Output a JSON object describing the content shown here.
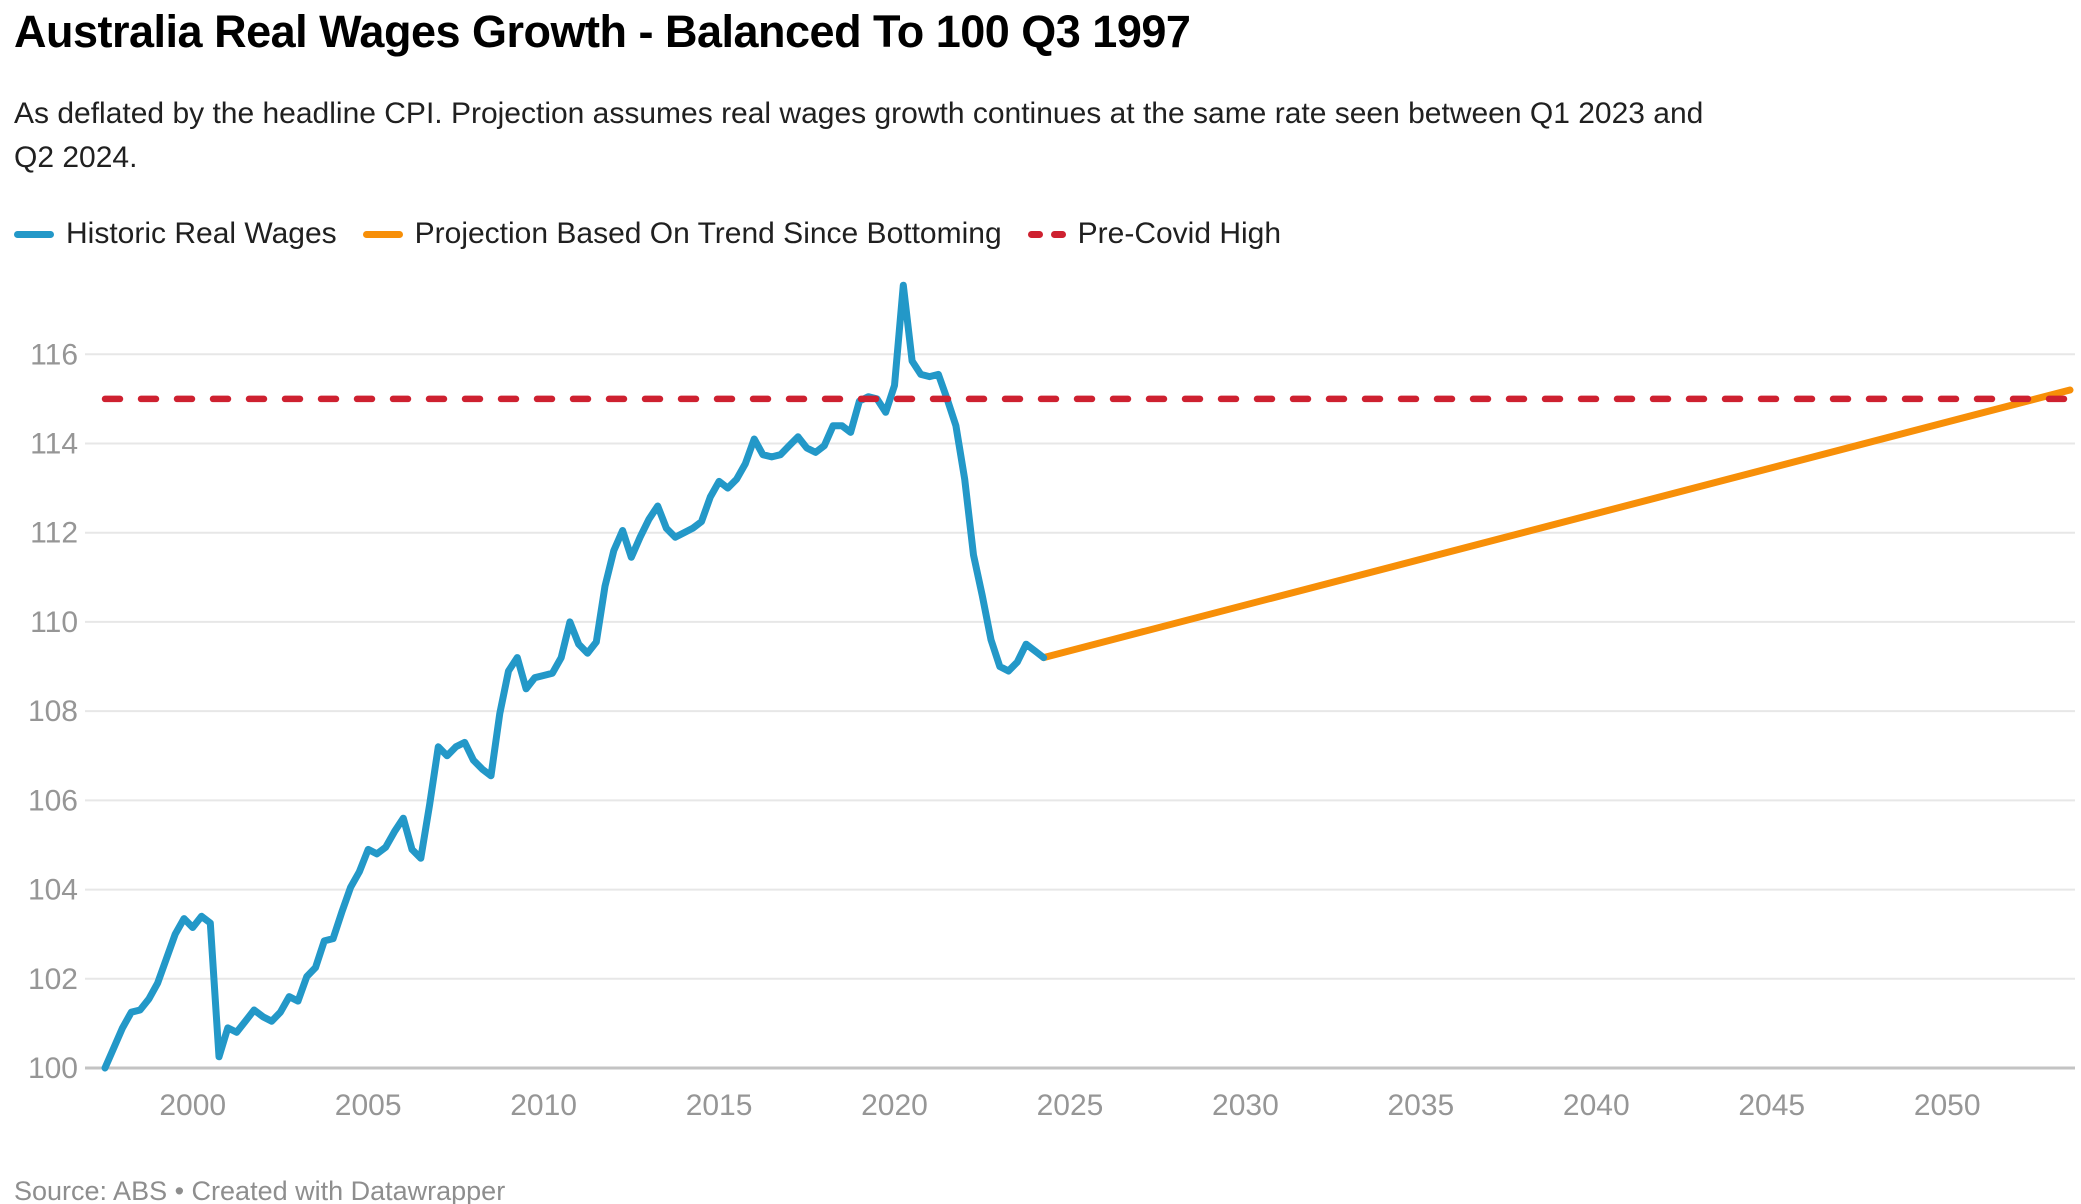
{
  "header": {
    "title": "Australia Real Wages Growth - Balanced To 100 Q3 1997",
    "subtitle": "As deflated by the headline CPI. Projection assumes real wages growth continues at the same rate seen between Q1 2023 and\nQ2 2024."
  },
  "legend": [
    {
      "label": "Historic Real Wages",
      "color": "#2398c8",
      "style": "solid"
    },
    {
      "label": "Projection Based On Trend Since Bottoming",
      "color": "#f78f08",
      "style": "solid"
    },
    {
      "label": "Pre-Covid High",
      "color": "#ce2130",
      "style": "dashed"
    }
  ],
  "footer": {
    "source": "Source: ABS • Created with Datawrapper"
  },
  "colors": {
    "historic": "#2398c8",
    "projection": "#f78f08",
    "pre_covid_high": "#ce2130",
    "gridline": "#e7e7e7",
    "axis_line": "#c3c3c3",
    "tick_label": "#969696"
  },
  "chart_data": {
    "type": "line",
    "title": "Australia Real Wages Growth - Balanced To 100 Q3 1997",
    "xlabel": "",
    "ylabel": "",
    "x_axis": {
      "range": [
        1997.5,
        2053.5
      ],
      "ticks": [
        2000,
        2005,
        2010,
        2015,
        2020,
        2025,
        2030,
        2035,
        2040,
        2045,
        2050
      ]
    },
    "y_axis": {
      "range": [
        100,
        117.8
      ],
      "ticks": [
        100,
        102,
        104,
        106,
        108,
        110,
        112,
        114,
        116
      ],
      "gridlines": true
    },
    "legend_position": "top",
    "series": [
      {
        "name": "Historic Real Wages",
        "color": "#2398c8",
        "style": "solid",
        "points": [
          [
            1997.5,
            100.0
          ],
          [
            1997.75,
            100.45
          ],
          [
            1998.0,
            100.9
          ],
          [
            1998.25,
            101.25
          ],
          [
            1998.5,
            101.3
          ],
          [
            1998.75,
            101.55
          ],
          [
            1999.0,
            101.9
          ],
          [
            1999.25,
            102.45
          ],
          [
            1999.5,
            103.0
          ],
          [
            1999.75,
            103.35
          ],
          [
            2000.0,
            103.15
          ],
          [
            2000.25,
            103.4
          ],
          [
            2000.5,
            103.25
          ],
          [
            2000.75,
            100.25
          ],
          [
            2001.0,
            100.9
          ],
          [
            2001.25,
            100.8
          ],
          [
            2001.5,
            101.05
          ],
          [
            2001.75,
            101.3
          ],
          [
            2002.0,
            101.15
          ],
          [
            2002.25,
            101.05
          ],
          [
            2002.5,
            101.25
          ],
          [
            2002.75,
            101.6
          ],
          [
            2003.0,
            101.5
          ],
          [
            2003.25,
            102.05
          ],
          [
            2003.5,
            102.25
          ],
          [
            2003.75,
            102.85
          ],
          [
            2004.0,
            102.9
          ],
          [
            2004.25,
            103.5
          ],
          [
            2004.5,
            104.05
          ],
          [
            2004.75,
            104.4
          ],
          [
            2005.0,
            104.9
          ],
          [
            2005.25,
            104.8
          ],
          [
            2005.5,
            104.95
          ],
          [
            2005.75,
            105.3
          ],
          [
            2006.0,
            105.6
          ],
          [
            2006.25,
            104.9
          ],
          [
            2006.5,
            104.7
          ],
          [
            2006.75,
            105.9
          ],
          [
            2007.0,
            107.2
          ],
          [
            2007.25,
            107.0
          ],
          [
            2007.5,
            107.2
          ],
          [
            2007.75,
            107.3
          ],
          [
            2008.0,
            106.9
          ],
          [
            2008.25,
            106.7
          ],
          [
            2008.5,
            106.55
          ],
          [
            2008.75,
            107.95
          ],
          [
            2009.0,
            108.9
          ],
          [
            2009.25,
            109.2
          ],
          [
            2009.5,
            108.5
          ],
          [
            2009.75,
            108.75
          ],
          [
            2010.0,
            108.8
          ],
          [
            2010.25,
            108.85
          ],
          [
            2010.5,
            109.2
          ],
          [
            2010.75,
            110.0
          ],
          [
            2011.0,
            109.5
          ],
          [
            2011.25,
            109.3
          ],
          [
            2011.5,
            109.55
          ],
          [
            2011.75,
            110.8
          ],
          [
            2012.0,
            111.6
          ],
          [
            2012.25,
            112.05
          ],
          [
            2012.5,
            111.45
          ],
          [
            2012.75,
            111.9
          ],
          [
            2013.0,
            112.3
          ],
          [
            2013.25,
            112.6
          ],
          [
            2013.5,
            112.1
          ],
          [
            2013.75,
            111.9
          ],
          [
            2014.0,
            112.0
          ],
          [
            2014.25,
            112.1
          ],
          [
            2014.5,
            112.25
          ],
          [
            2014.75,
            112.8
          ],
          [
            2015.0,
            113.15
          ],
          [
            2015.25,
            113.0
          ],
          [
            2015.5,
            113.2
          ],
          [
            2015.75,
            113.55
          ],
          [
            2016.0,
            114.1
          ],
          [
            2016.25,
            113.75
          ],
          [
            2016.5,
            113.7
          ],
          [
            2016.75,
            113.75
          ],
          [
            2017.0,
            113.95
          ],
          [
            2017.25,
            114.15
          ],
          [
            2017.5,
            113.9
          ],
          [
            2017.75,
            113.8
          ],
          [
            2018.0,
            113.95
          ],
          [
            2018.25,
            114.4
          ],
          [
            2018.5,
            114.4
          ],
          [
            2018.75,
            114.25
          ],
          [
            2019.0,
            114.95
          ],
          [
            2019.25,
            115.05
          ],
          [
            2019.5,
            115.0
          ],
          [
            2019.75,
            114.7
          ],
          [
            2020.0,
            115.3
          ],
          [
            2020.25,
            117.55
          ],
          [
            2020.5,
            115.85
          ],
          [
            2020.75,
            115.55
          ],
          [
            2021.0,
            115.5
          ],
          [
            2021.25,
            115.55
          ],
          [
            2021.5,
            115.0
          ],
          [
            2021.75,
            114.4
          ],
          [
            2022.0,
            113.2
          ],
          [
            2022.25,
            111.5
          ],
          [
            2022.5,
            110.6
          ],
          [
            2022.75,
            109.6
          ],
          [
            2023.0,
            109.0
          ],
          [
            2023.25,
            108.9
          ],
          [
            2023.5,
            109.1
          ],
          [
            2023.75,
            109.5
          ],
          [
            2024.0,
            109.35
          ],
          [
            2024.25,
            109.2
          ]
        ]
      },
      {
        "name": "Projection Based On Trend Since Bottoming",
        "color": "#f78f08",
        "style": "solid",
        "points": [
          [
            2024.25,
            109.2
          ],
          [
            2053.5,
            115.2
          ]
        ]
      },
      {
        "name": "Pre-Covid High",
        "color": "#ce2130",
        "style": "dashed",
        "value": 115,
        "points": [
          [
            1997.5,
            115.0
          ],
          [
            2053.5,
            115.0
          ]
        ]
      }
    ]
  }
}
